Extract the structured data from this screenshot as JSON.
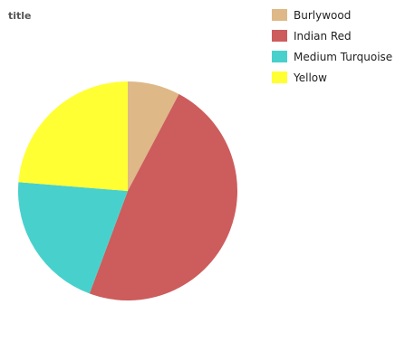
{
  "chart_data": {
    "type": "pie",
    "title": "title",
    "categories": [
      "Burlywood",
      "Indian Red",
      "Medium Turquoise",
      "Yellow"
    ],
    "values": [
      7.5,
      46.5,
      20,
      23
    ],
    "colors": [
      "#deb887",
      "#cd5c5c",
      "#48d1cc",
      "#ffff33"
    ],
    "legend_position": "right"
  }
}
